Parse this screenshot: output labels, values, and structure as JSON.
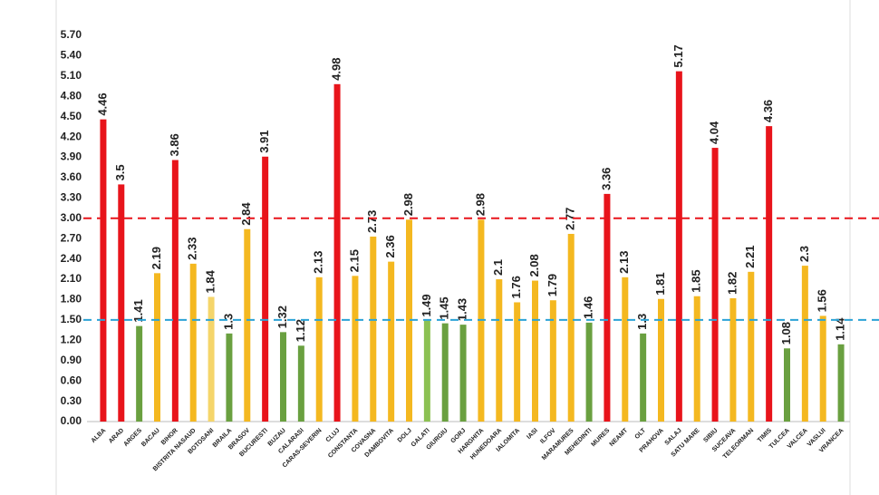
{
  "chart_data": {
    "type": "bar",
    "categories": [
      "ALBA",
      "ARAD",
      "ARGES",
      "BACAU",
      "BIHOR",
      "BISTRITA NASAUD",
      "BOTOSANI",
      "BRAILA",
      "BRASOV",
      "BUCURESTI",
      "BUZAU",
      "CALARASI",
      "CARAS-SEVERIN",
      "CLUJ",
      "CONSTANTA",
      "COVASNA",
      "DAMBOVITA",
      "DOLJ",
      "GALATI",
      "GIURGIU",
      "GORJ",
      "HARGHITA",
      "HUNEDOARA",
      "IALOMITA",
      "IASI",
      "ILFOV",
      "MARAMURES",
      "MEHEDINTI",
      "MURES",
      "NEAMT",
      "OLT",
      "PRAHOVA",
      "SALAJ",
      "SATU MARE",
      "SIBIU",
      "SUCEAVA",
      "TELEORMAN",
      "TIMIS",
      "TULCEA",
      "VALCEA",
      "VASLUI",
      "VRANCEA"
    ],
    "values": [
      4.46,
      3.5,
      1.41,
      2.19,
      3.86,
      2.33,
      1.84,
      1.3,
      2.84,
      3.91,
      1.32,
      1.12,
      2.13,
      4.98,
      2.15,
      2.73,
      2.36,
      2.98,
      1.49,
      1.45,
      1.43,
      2.98,
      2.1,
      1.76,
      2.08,
      1.79,
      2.77,
      1.46,
      3.36,
      2.13,
      1.3,
      1.81,
      5.17,
      1.85,
      4.04,
      1.82,
      2.21,
      4.36,
      1.08,
      2.3,
      1.56,
      1.14
    ],
    "colors": [
      "#e8141b",
      "#e8141b",
      "#6aa040",
      "#f4b820",
      "#e8141b",
      "#f4b820",
      "#f5d56a",
      "#6aa040",
      "#f4b820",
      "#e8141b",
      "#6aa040",
      "#6aa040",
      "#f4b820",
      "#e8141b",
      "#f4b820",
      "#f4b820",
      "#f4b820",
      "#f4b820",
      "#8cc152",
      "#6aa040",
      "#6aa040",
      "#f4b820",
      "#f4b820",
      "#f4b820",
      "#f4b820",
      "#f4b820",
      "#f4b820",
      "#6aa040",
      "#e8141b",
      "#f4b820",
      "#6aa040",
      "#f4b820",
      "#e8141b",
      "#f4b820",
      "#e8141b",
      "#f4b820",
      "#f4b820",
      "#e8141b",
      "#6aa040",
      "#f4b820",
      "#f4b820",
      "#6aa040"
    ],
    "ylim": [
      0,
      5.7
    ],
    "yticks": [
      {
        "value": 0,
        "label": "0.00"
      },
      {
        "value": 0.3,
        "label": "0.30"
      },
      {
        "value": 0.6,
        "label": "0.60"
      },
      {
        "value": 0.9,
        "label": "0.90"
      },
      {
        "value": 1.2,
        "label": "1.20"
      },
      {
        "value": 1.5,
        "label": "1.50"
      },
      {
        "value": 1.8,
        "label": "1.80"
      },
      {
        "value": 2.1,
        "label": "2.10"
      },
      {
        "value": 2.4,
        "label": "2.40"
      },
      {
        "value": 2.7,
        "label": "2.70"
      },
      {
        "value": 3,
        "label": "3.00"
      },
      {
        "value": 3.3,
        "label": "3.30"
      },
      {
        "value": 3.6,
        "label": "3.60"
      },
      {
        "value": 3.9,
        "label": "3.90"
      },
      {
        "value": 4.2,
        "label": "4.20"
      },
      {
        "value": 4.5,
        "label": "4.50"
      },
      {
        "value": 4.8,
        "label": "4.80"
      },
      {
        "value": 5.1,
        "label": "5.10"
      },
      {
        "value": 5.4,
        "label": "5.40"
      },
      {
        "value": 5.7,
        "label": "5.70"
      }
    ],
    "grid": false,
    "reference_lines": [
      {
        "value": 3,
        "color": "#e8141b"
      },
      {
        "value": 1.5,
        "color": "#2ba3d6"
      }
    ]
  }
}
